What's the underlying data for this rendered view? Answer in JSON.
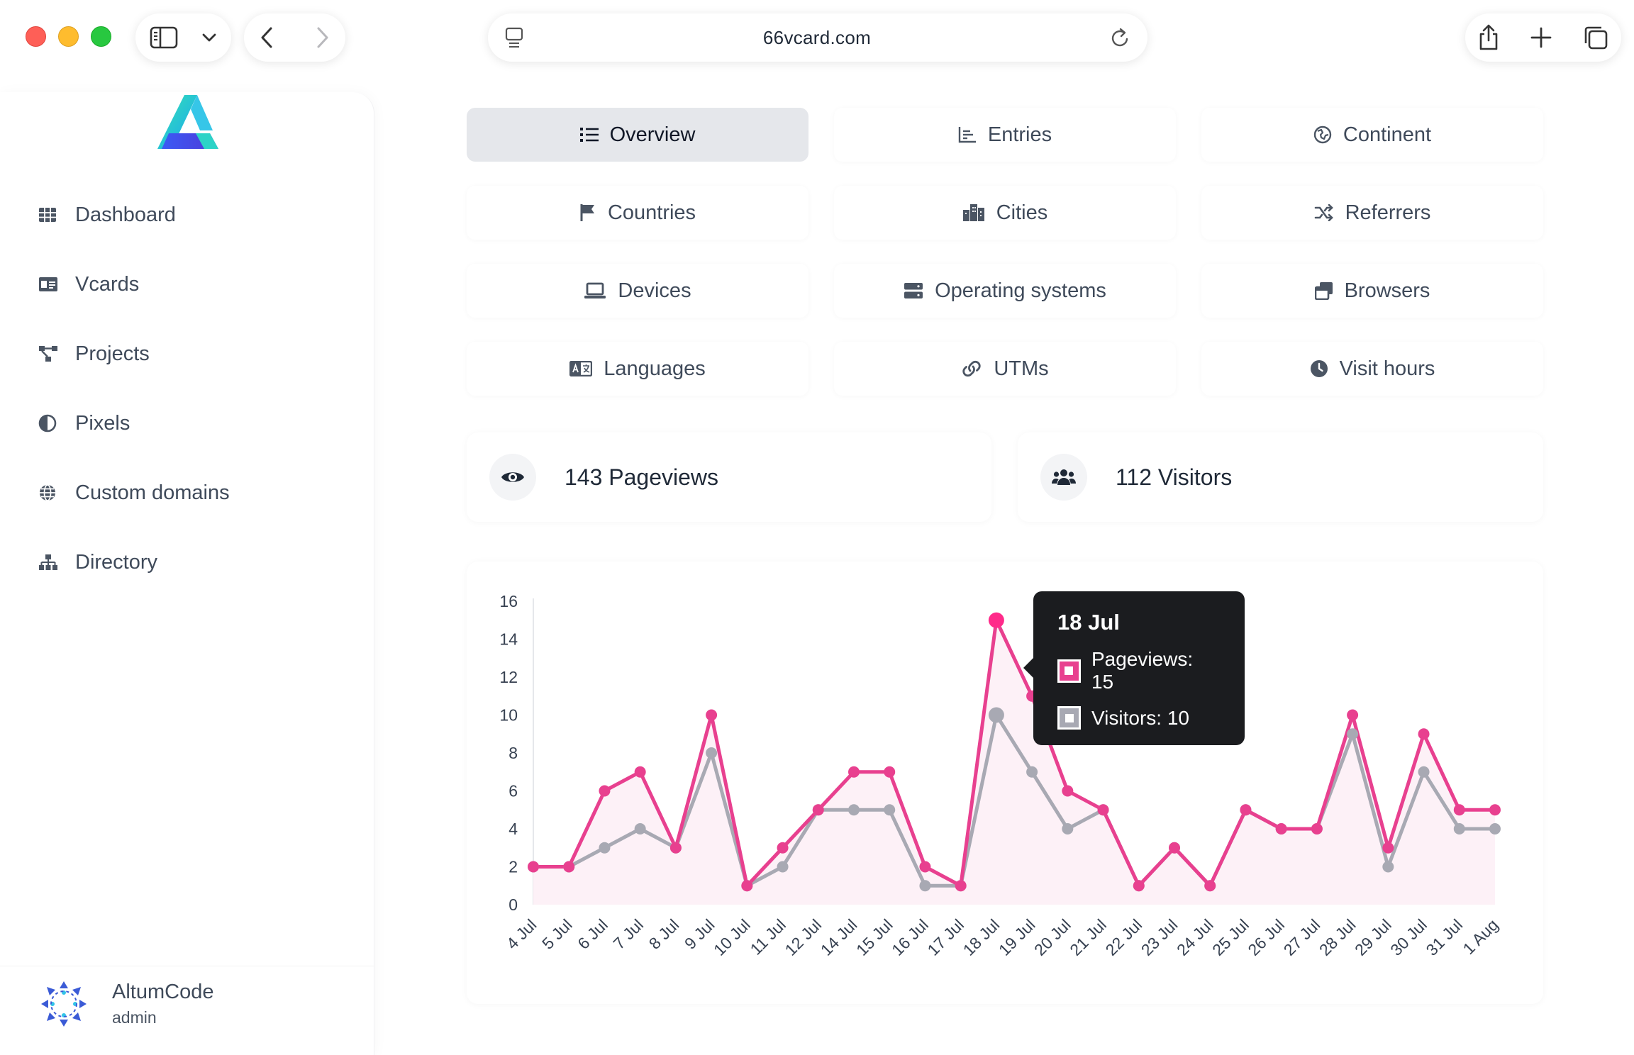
{
  "browser": {
    "url": "66vcard.com"
  },
  "sidebar": {
    "items": [
      {
        "label": "Dashboard",
        "icon": "table-icon"
      },
      {
        "label": "Vcards",
        "icon": "id-card-icon"
      },
      {
        "label": "Projects",
        "icon": "project-diagram-icon"
      },
      {
        "label": "Pixels",
        "icon": "adjust-icon"
      },
      {
        "label": "Custom domains",
        "icon": "globe-icon"
      },
      {
        "label": "Directory",
        "icon": "sitemap-icon"
      }
    ],
    "user": {
      "name": "AltumCode",
      "role": "admin"
    }
  },
  "tabs": [
    {
      "label": "Overview",
      "icon": "list-icon",
      "active": true
    },
    {
      "label": "Entries",
      "icon": "chart-bar-icon"
    },
    {
      "label": "Continent",
      "icon": "globe-europe-icon"
    },
    {
      "label": "Countries",
      "icon": "flag-icon"
    },
    {
      "label": "Cities",
      "icon": "city-icon"
    },
    {
      "label": "Referrers",
      "icon": "random-icon"
    },
    {
      "label": "Devices",
      "icon": "laptop-icon"
    },
    {
      "label": "Operating systems",
      "icon": "server-icon"
    },
    {
      "label": "Browsers",
      "icon": "window-restore-icon"
    },
    {
      "label": "Languages",
      "icon": "language-icon"
    },
    {
      "label": "UTMs",
      "icon": "link-icon"
    },
    {
      "label": "Visit hours",
      "icon": "clock-icon"
    }
  ],
  "stats": {
    "pageviews": "143 Pageviews",
    "visitors": "112 Visitors"
  },
  "colors": {
    "pageviews": "#e8408f",
    "visitors": "#a8a9b3",
    "accent": "#2f6fe8"
  },
  "chart_data": {
    "type": "line",
    "categories": [
      "4 Jul",
      "5 Jul",
      "6 Jul",
      "7 Jul",
      "8 Jul",
      "9 Jul",
      "10 Jul",
      "11 Jul",
      "12 Jul",
      "14 Jul",
      "15 Jul",
      "16 Jul",
      "17 Jul",
      "18 Jul",
      "19 Jul",
      "20 Jul",
      "21 Jul",
      "22 Jul",
      "23 Jul",
      "24 Jul",
      "25 Jul",
      "26 Jul",
      "27 Jul",
      "28 Jul",
      "29 Jul",
      "30 Jul",
      "31 Jul",
      "1 Aug"
    ],
    "series": [
      {
        "name": "Pageviews",
        "values": [
          2,
          2,
          6,
          7,
          3,
          10,
          1,
          3,
          5,
          7,
          7,
          2,
          1,
          15,
          11,
          6,
          5,
          1,
          3,
          1,
          5,
          4,
          4,
          10,
          3,
          9,
          5,
          5
        ]
      },
      {
        "name": "Visitors",
        "values": [
          2,
          2,
          3,
          4,
          3,
          8,
          1,
          2,
          5,
          5,
          5,
          1,
          1,
          10,
          7,
          4,
          5,
          1,
          3,
          1,
          5,
          4,
          4,
          9,
          2,
          7,
          4,
          4
        ]
      }
    ],
    "yticks": [
      0,
      2,
      4,
      6,
      8,
      10,
      12,
      14,
      16
    ],
    "ylim": [
      0,
      16
    ],
    "grid": false,
    "tooltip": {
      "title": "18 Jul",
      "pageviews": "Pageviews: 15",
      "visitors": "Visitors: 10"
    }
  }
}
